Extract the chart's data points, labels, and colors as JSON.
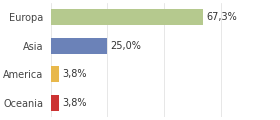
{
  "categories": [
    "Europa",
    "Asia",
    "America",
    "Oceania"
  ],
  "values": [
    67.3,
    25.0,
    3.8,
    3.8
  ],
  "labels": [
    "67,3%",
    "25,0%",
    "3,8%",
    "3,8%"
  ],
  "bar_colors": [
    "#b5c98e",
    "#6b82b8",
    "#e8b84b",
    "#cc3333"
  ],
  "background_color": "#ffffff",
  "xlim": [
    0,
    100
  ],
  "bar_height": 0.55,
  "label_fontsize": 7.0,
  "category_fontsize": 7.0,
  "grid_color": "#dddddd"
}
